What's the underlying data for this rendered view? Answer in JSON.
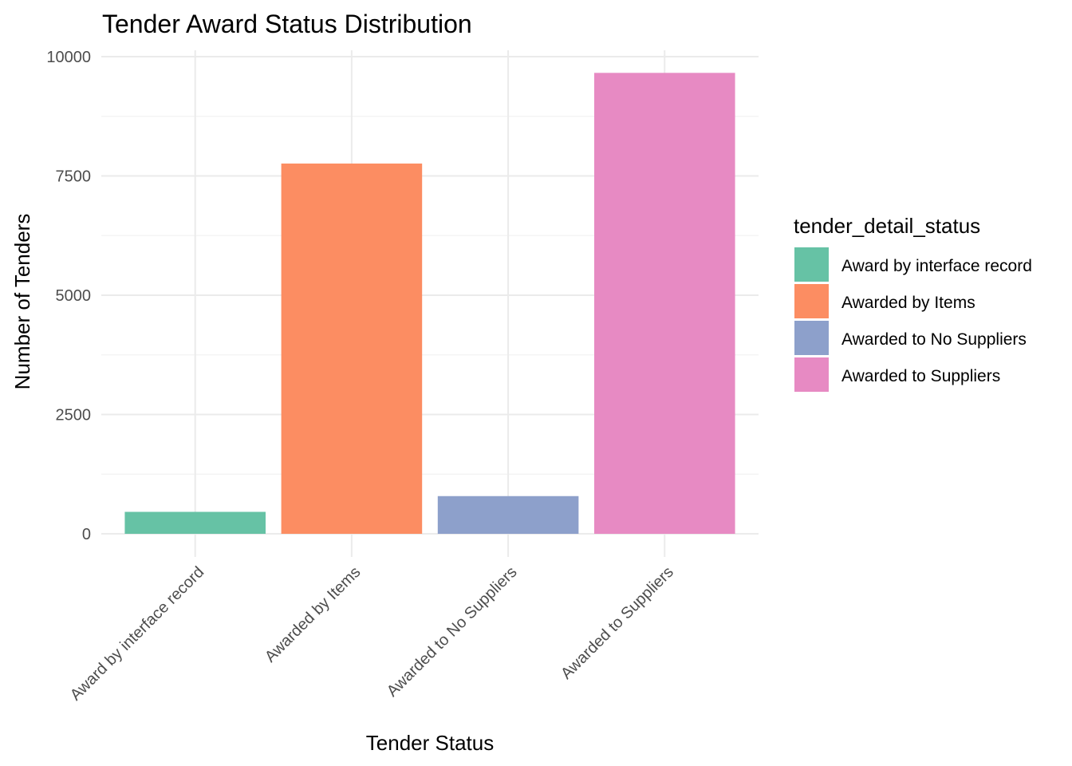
{
  "chart_data": {
    "type": "bar",
    "title": "Tender Award Status Distribution",
    "xlabel": "Tender Status",
    "ylabel": "Number of Tenders",
    "categories": [
      "Award by interface record",
      "Awarded by Items",
      "Awarded to No Suppliers",
      "Awarded to Suppliers"
    ],
    "values": [
      460,
      7760,
      790,
      9660
    ],
    "colors": [
      "#66c2a5",
      "#fc8d62",
      "#8da0cb",
      "#e78ac3"
    ],
    "ylim": [
      0,
      10000
    ],
    "yticks": [
      0,
      2500,
      5000,
      7500,
      10000
    ],
    "ytick_labels": [
      "0",
      "2500",
      "5000",
      "7500",
      "10000"
    ],
    "grid": true,
    "legend": {
      "title": "tender_detail_status",
      "position": "right",
      "entries": [
        "Award by interface record",
        "Awarded by Items",
        "Awarded to No Suppliers",
        "Awarded to Suppliers"
      ]
    }
  }
}
